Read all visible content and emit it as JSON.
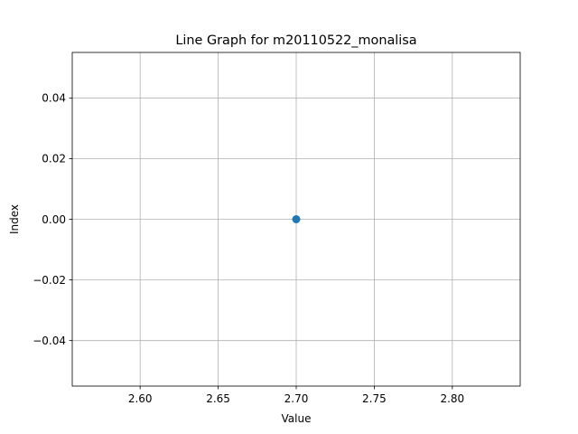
{
  "chart_data": {
    "type": "line",
    "title": "Line Graph for m20110522_monalisa",
    "xlabel": "Value",
    "ylabel": "Index",
    "x": [
      2.7
    ],
    "y": [
      0
    ],
    "series": [
      {
        "x": [
          2.7
        ],
        "y": [
          0
        ],
        "color": "#1f77b4",
        "marker": "circle"
      }
    ],
    "xlim": [
      2.5565,
      2.8435
    ],
    "ylim": [
      -0.055,
      0.055
    ],
    "xticks": [
      2.6,
      2.65,
      2.7,
      2.75,
      2.8
    ],
    "xtick_labels": [
      "2.60",
      "2.65",
      "2.70",
      "2.75",
      "2.80"
    ],
    "yticks": [
      -0.04,
      -0.02,
      0.0,
      0.02,
      0.04
    ],
    "ytick_labels": [
      "−0.04",
      "−0.02",
      "0.00",
      "0.02",
      "0.04"
    ],
    "grid": true,
    "colors": {
      "grid": "#b0b0b0",
      "axes": "#000000",
      "point": "#1f77b4"
    }
  }
}
